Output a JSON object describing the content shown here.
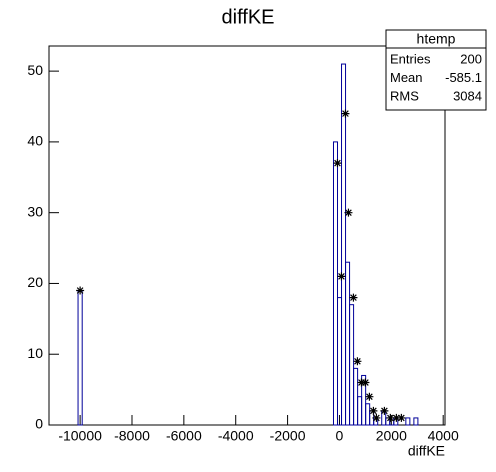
{
  "chart_data": {
    "type": "histogram",
    "title": "diffKE",
    "xlabel": "diffKE",
    "bins": [
      -10080,
      -9920,
      -230,
      -75,
      80,
      235,
      390,
      545,
      700,
      855,
      1010,
      1165,
      1320,
      1475,
      1630,
      1785,
      1940,
      2095,
      2250,
      2405,
      2560,
      2715,
      2870,
      3025,
      3180
    ],
    "counts": [
      19,
      0,
      40,
      18,
      51,
      23,
      17,
      8,
      4,
      7,
      3,
      2,
      1,
      0,
      2,
      1,
      1,
      1,
      0,
      0,
      1,
      0,
      1,
      0
    ],
    "color": "#000099",
    "points": {
      "x": [
        -10000,
        -77,
        77,
        231,
        347,
        539,
        693,
        847,
        1001,
        1155,
        1309,
        1425,
        1733,
        1963,
        2195,
        2388
      ],
      "values": [
        19,
        37,
        21,
        44,
        30,
        18,
        9,
        6,
        6,
        4,
        2,
        1,
        2,
        1,
        1,
        1
      ],
      "color": "#000000"
    },
    "xlim": [
      -11200,
      4070
    ],
    "xticks": [
      -10000,
      -8000,
      -6000,
      -4000,
      -2000,
      0,
      2000,
      4000
    ],
    "ylim": [
      0,
      53.55
    ],
    "yticks": [
      0,
      10,
      20,
      30,
      40,
      50
    ],
    "stats": {
      "title": "htemp",
      "rows": [
        {
          "label": "Entries",
          "value": 200
        },
        {
          "label": "Mean",
          "value": -585.1
        },
        {
          "label": "RMS",
          "value": 3084
        }
      ]
    }
  }
}
